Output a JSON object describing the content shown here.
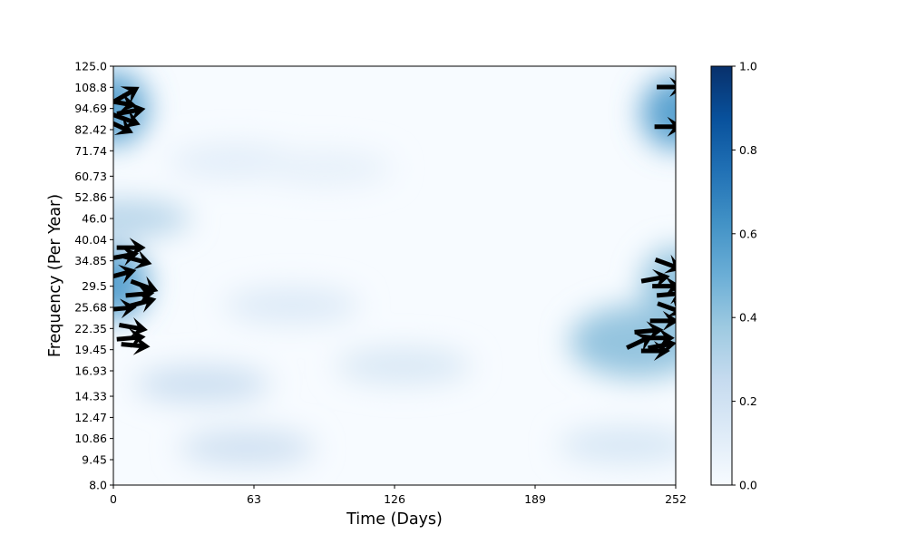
{
  "chart_data": {
    "type": "heatmap",
    "xlabel": "Time (Days)",
    "ylabel": "Frequency (Per Year)",
    "xlim": [
      0,
      252
    ],
    "ylim": [
      8.0,
      125.0
    ],
    "yscale": "log",
    "x_ticks": [
      0,
      63,
      126,
      189,
      252
    ],
    "y_ticks": [
      "8.0",
      "9.45",
      "10.86",
      "12.47",
      "14.33",
      "16.93",
      "19.45",
      "22.35",
      "25.68",
      "29.5",
      "34.85",
      "40.04",
      "46.0",
      "52.86",
      "60.73",
      "71.74",
      "82.42",
      "94.69",
      "108.8",
      "125.0"
    ],
    "colormap": "Blues",
    "colorbar": {
      "range": [
        0.0,
        1.0
      ],
      "ticks": [
        "0.0",
        "0.2",
        "0.4",
        "0.6",
        "0.8",
        "1.0"
      ]
    },
    "colors": {
      "low": "#f7fbff",
      "high": "#08306b",
      "arrows": "#000000"
    },
    "regions": [
      {
        "x": 0,
        "y": 95,
        "value": 0.55
      },
      {
        "x": 0,
        "y": 30,
        "value": 0.55
      },
      {
        "x": 4,
        "y": 46,
        "value": 0.3
      },
      {
        "x": 252,
        "y": 92,
        "value": 0.55
      },
      {
        "x": 252,
        "y": 30,
        "value": 0.4
      },
      {
        "x": 235,
        "y": 20.5,
        "value": 0.4
      },
      {
        "x": 40,
        "y": 15.5,
        "value": 0.22
      },
      {
        "x": 130,
        "y": 17.5,
        "value": 0.15
      },
      {
        "x": 60,
        "y": 10.2,
        "value": 0.2
      },
      {
        "x": 230,
        "y": 10.4,
        "value": 0.16
      },
      {
        "x": 80,
        "y": 26,
        "value": 0.13
      },
      {
        "x": 55,
        "y": 67,
        "value": 0.1
      },
      {
        "x": 95,
        "y": 64,
        "value": 0.08
      }
    ],
    "phase_arrows": [
      {
        "x": 6,
        "y": 104,
        "angle": 30
      },
      {
        "x": 4,
        "y": 98,
        "angle": -10
      },
      {
        "x": 8,
        "y": 93,
        "angle": 10
      },
      {
        "x": 6,
        "y": 88,
        "angle": -20
      },
      {
        "x": 3,
        "y": 84,
        "angle": -25
      },
      {
        "x": 8,
        "y": 38,
        "angle": 0
      },
      {
        "x": 5,
        "y": 36,
        "angle": 10
      },
      {
        "x": 11,
        "y": 35,
        "angle": -15
      },
      {
        "x": 4,
        "y": 32,
        "angle": 15
      },
      {
        "x": 14,
        "y": 29.5,
        "angle": -20
      },
      {
        "x": 12,
        "y": 28,
        "angle": 5
      },
      {
        "x": 13,
        "y": 26.5,
        "angle": 15
      },
      {
        "x": 4,
        "y": 25.5,
        "angle": 5
      },
      {
        "x": 9,
        "y": 22.5,
        "angle": -10
      },
      {
        "x": 8,
        "y": 21,
        "angle": 5
      },
      {
        "x": 10,
        "y": 20,
        "angle": -5
      },
      {
        "x": 250,
        "y": 109,
        "angle": 0
      },
      {
        "x": 249,
        "y": 84,
        "angle": 0
      },
      {
        "x": 249,
        "y": 34,
        "angle": -20
      },
      {
        "x": 243,
        "y": 31,
        "angle": 10
      },
      {
        "x": 248,
        "y": 29.5,
        "angle": 0
      },
      {
        "x": 250,
        "y": 28,
        "angle": 5
      },
      {
        "x": 250,
        "y": 25.5,
        "angle": -20
      },
      {
        "x": 247,
        "y": 23.5,
        "angle": 0
      },
      {
        "x": 240,
        "y": 22,
        "angle": 5
      },
      {
        "x": 245,
        "y": 21,
        "angle": 0
      },
      {
        "x": 236,
        "y": 20.5,
        "angle": 25
      },
      {
        "x": 246,
        "y": 20,
        "angle": 10
      },
      {
        "x": 243,
        "y": 19.3,
        "angle": 0
      }
    ]
  }
}
